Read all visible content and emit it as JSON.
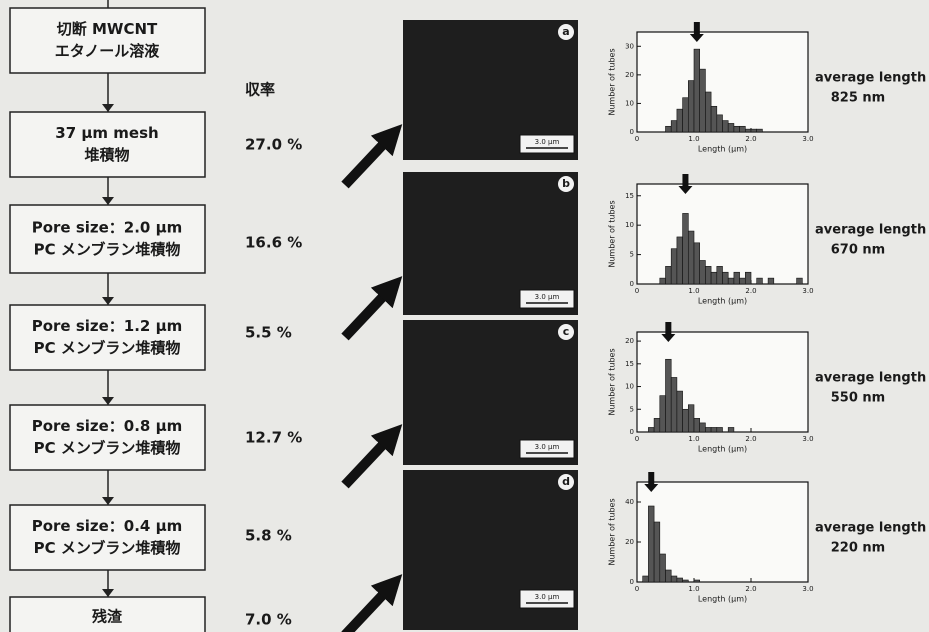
{
  "flow": {
    "boxes": [
      [
        "切断 MWCNT",
        "エタノール溶液"
      ],
      [
        "37 µm mesh",
        "堆積物"
      ],
      [
        "Pore size：2.0 µm",
        "PC メンブラン堆積物"
      ],
      [
        "Pore size：1.2 µm",
        "PC メンブラン堆積物"
      ],
      [
        "Pore size：0.8 µm",
        "PC メンブラン堆積物"
      ],
      [
        "Pore size：0.4 µm",
        "PC メンブラン堆積物"
      ],
      [
        "残渣"
      ]
    ],
    "yield_header": "収率",
    "yields": [
      "27.0 %",
      "16.6 %",
      "5.5 %",
      "12.7 %",
      "5.8 %",
      "7.0 %"
    ]
  },
  "panels": [
    {
      "label": "a",
      "scale_bar": "3.0 µm",
      "average_label": "average length",
      "average": "825 nm",
      "histogram": {
        "type": "histogram",
        "y_label": "Number of tubes",
        "x_label": "Length (µm)",
        "bins": [
          0,
          0.1,
          0.2,
          0.3,
          0.4,
          0.5,
          0.6,
          0.7,
          0.8,
          0.9,
          1.0,
          1.1,
          1.2,
          1.3,
          1.4,
          1.5,
          1.6,
          1.7,
          1.8,
          1.9,
          2.0,
          2.1,
          2.2,
          2.3,
          2.4,
          2.5,
          2.6,
          2.7,
          2.8,
          2.9,
          3.0
        ],
        "values": [
          0,
          0,
          0,
          0,
          0,
          2,
          4,
          8,
          12,
          18,
          29,
          22,
          14,
          9,
          6,
          4,
          3,
          2,
          2,
          1,
          1,
          1,
          0,
          0,
          0,
          0,
          0,
          0,
          0,
          0
        ],
        "xlim": [
          0,
          3
        ],
        "ylim": [
          0,
          35
        ],
        "xticks": [
          0,
          {
            "value": 1,
            "label": "1.0"
          },
          {
            "value": 2,
            "label": "2.0"
          },
          {
            "value": 3,
            "label": "3.0"
          }
        ],
        "yticks": [
          0,
          10,
          20,
          30
        ]
      }
    },
    {
      "label": "b",
      "scale_bar": "3.0 µm",
      "average_label": "average length",
      "average": "670 nm",
      "histogram": {
        "type": "histogram",
        "y_label": "Number of tubes",
        "x_label": "Length (µm)",
        "bins": [
          0,
          0.1,
          0.2,
          0.3,
          0.4,
          0.5,
          0.6,
          0.7,
          0.8,
          0.9,
          1.0,
          1.1,
          1.2,
          1.3,
          1.4,
          1.5,
          1.6,
          1.7,
          1.8,
          1.9,
          2.0,
          2.1,
          2.2,
          2.3,
          2.4,
          2.5,
          2.6,
          2.7,
          2.8,
          2.9,
          3.0
        ],
        "values": [
          0,
          0,
          0,
          0,
          1,
          3,
          6,
          8,
          12,
          9,
          7,
          4,
          3,
          2,
          3,
          2,
          1,
          2,
          1,
          2,
          0,
          1,
          0,
          1,
          0,
          0,
          0,
          0,
          1,
          0
        ],
        "xlim": [
          0,
          3
        ],
        "ylim": [
          0,
          17
        ],
        "xticks": [
          0,
          {
            "value": 1,
            "label": "1.0"
          },
          {
            "value": 2,
            "label": "2.0"
          },
          {
            "value": 3,
            "label": "3.0"
          }
        ],
        "yticks": [
          0,
          5,
          10,
          15
        ]
      }
    },
    {
      "label": "c",
      "scale_bar": "3.0 µm",
      "average_label": "average length",
      "average": "550 nm",
      "histogram": {
        "type": "histogram",
        "y_label": "Number of tubes",
        "x_label": "Length (µm)",
        "bins": [
          0,
          0.1,
          0.2,
          0.3,
          0.4,
          0.5,
          0.6,
          0.7,
          0.8,
          0.9,
          1.0,
          1.1,
          1.2,
          1.3,
          1.4,
          1.5,
          1.6,
          1.7,
          1.8,
          1.9,
          2.0,
          2.1,
          2.2,
          2.3,
          2.4,
          2.5,
          2.6,
          2.7,
          2.8,
          2.9,
          3.0
        ],
        "values": [
          0,
          0,
          1,
          3,
          8,
          16,
          12,
          9,
          5,
          6,
          3,
          2,
          1,
          1,
          1,
          0,
          1,
          0,
          0,
          0,
          0,
          0,
          0,
          0,
          0,
          0,
          0,
          0,
          0,
          0
        ],
        "xlim": [
          0,
          3
        ],
        "ylim": [
          0,
          22
        ],
        "xticks": [
          0,
          {
            "value": 1,
            "label": "1.0"
          },
          {
            "value": 2,
            "label": "2.0"
          },
          {
            "value": 3,
            "label": "3.0"
          }
        ],
        "yticks": [
          0,
          5,
          10,
          15,
          20
        ]
      }
    },
    {
      "label": "d",
      "scale_bar": "3.0 µm",
      "average_label": "average length",
      "average": "220 nm",
      "histogram": {
        "type": "histogram",
        "y_label": "Number of tubes",
        "x_label": "Length (µm)",
        "bins": [
          0,
          0.1,
          0.2,
          0.3,
          0.4,
          0.5,
          0.6,
          0.7,
          0.8,
          0.9,
          1.0,
          1.1,
          1.2,
          1.3,
          1.4,
          1.5,
          1.6,
          1.7,
          1.8,
          1.9,
          2.0,
          2.1,
          2.2,
          2.3,
          2.4,
          2.5,
          2.6,
          2.7,
          2.8,
          2.9,
          3.0
        ],
        "values": [
          0,
          3,
          38,
          30,
          14,
          6,
          3,
          2,
          1,
          0,
          1,
          0,
          0,
          0,
          0,
          0,
          0,
          0,
          0,
          0,
          0,
          0,
          0,
          0,
          0,
          0,
          0,
          0,
          0,
          0
        ],
        "xlim": [
          0,
          3
        ],
        "ylim": [
          0,
          50
        ],
        "xticks": [
          0,
          {
            "value": 1,
            "label": "1.0"
          },
          {
            "value": 2,
            "label": "2.0"
          },
          {
            "value": 3,
            "label": "3.0"
          }
        ],
        "yticks": [
          0,
          20,
          40
        ]
      }
    }
  ]
}
